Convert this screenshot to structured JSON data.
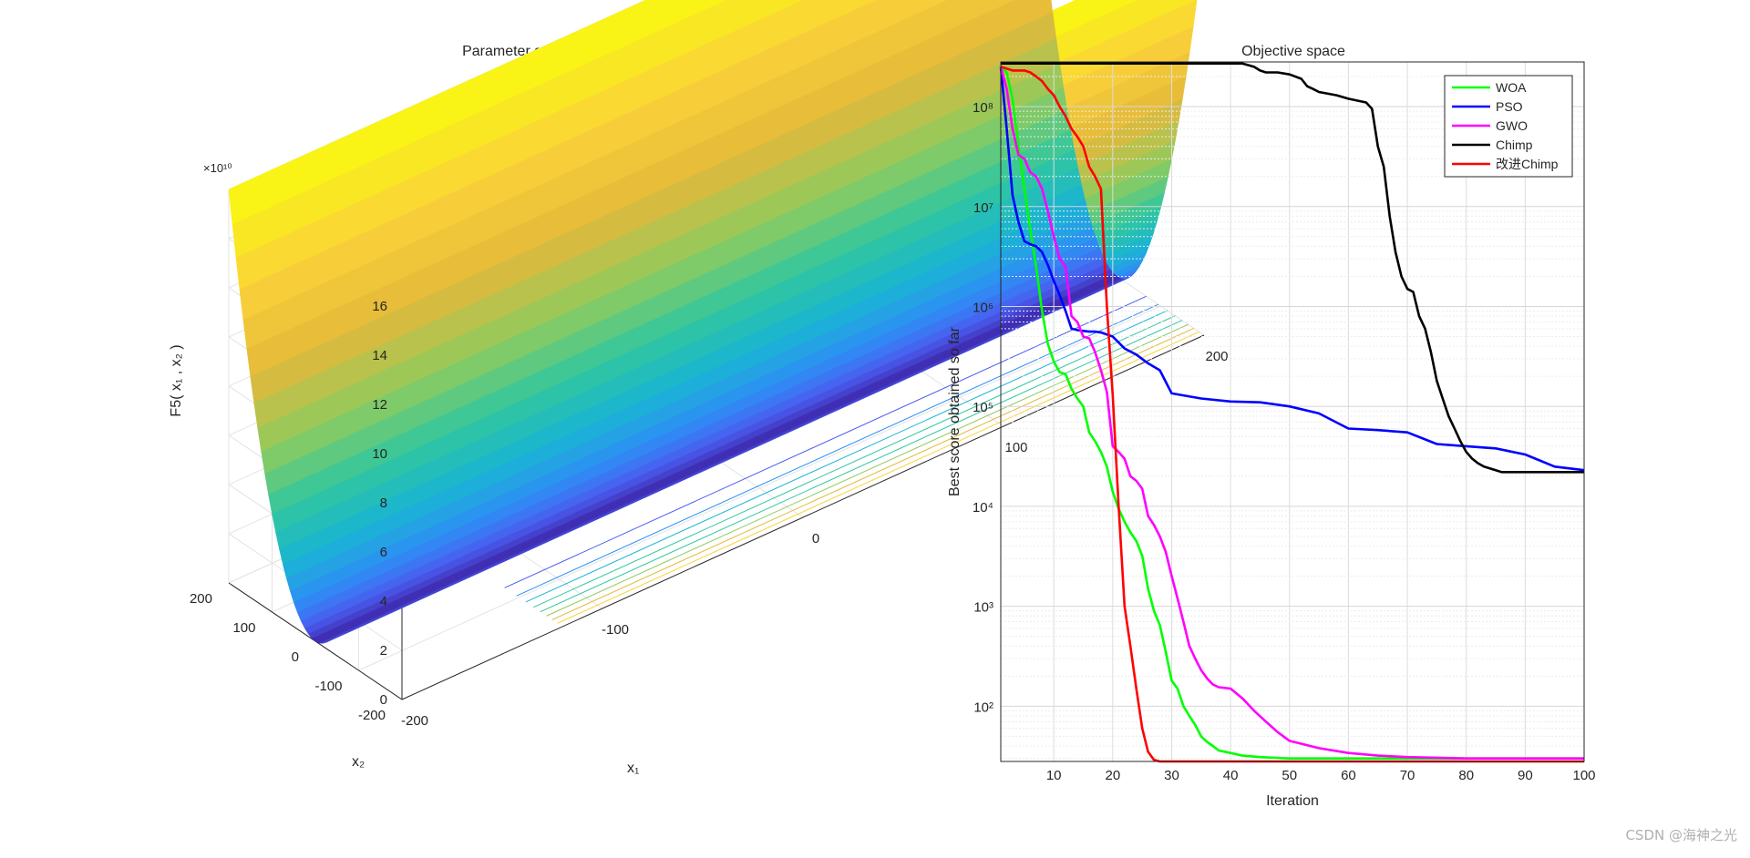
{
  "watermark": "CSDN @海神之光",
  "chart_data": [
    {
      "type": "surface",
      "title": "Parameter space",
      "zlabel": "F5( x₁ , x₂ )",
      "xlabel": "x₁",
      "ylabel": "x₂",
      "z_exponent": "×10¹⁰",
      "xlim": [
        -200,
        200
      ],
      "ylim": [
        -200,
        200
      ],
      "zlim": [
        0,
        16
      ],
      "z_ticks": [
        "0",
        "2",
        "4",
        "6",
        "8",
        "10",
        "12",
        "14",
        "16"
      ],
      "x_ticks": [
        "-200",
        "-100",
        "0",
        "100",
        "200"
      ],
      "y_ticks": [
        "-200",
        "-100",
        "0",
        "100",
        "200"
      ],
      "colormap": [
        "#3e26a8",
        "#4a5cf0",
        "#2d8ff5",
        "#1ab4d3",
        "#2fc6a0",
        "#8fcb5e",
        "#e3b93a",
        "#fbd23a",
        "#f9fb0e"
      ],
      "contour_levels": 9,
      "grid": true
    },
    {
      "type": "line",
      "title": "Objective space",
      "xlabel": "Iteration",
      "ylabel": "Best score obtained so far",
      "yscale": "log",
      "xlim": [
        1,
        100
      ],
      "ylim": [
        28,
        280000000
      ],
      "x_ticks": [
        10,
        20,
        30,
        40,
        50,
        60,
        70,
        80,
        90,
        100
      ],
      "y_ticks": [
        "10²",
        "10³",
        "10⁴",
        "10⁵",
        "10⁶",
        "10⁷",
        "10⁸"
      ],
      "grid": true,
      "legend_position": "top-right",
      "series": [
        {
          "name": "WOA",
          "color": "#00ff00",
          "x": [
            1,
            2,
            3,
            4,
            5,
            6,
            7,
            8,
            9,
            10,
            11,
            12,
            13,
            14,
            15,
            16,
            17,
            18,
            19,
            20,
            21,
            22,
            23,
            24,
            25,
            26,
            27,
            28,
            29,
            30,
            31,
            32,
            33,
            34,
            35,
            36,
            37,
            38,
            40,
            42,
            45,
            50,
            55,
            60,
            70,
            80,
            90,
            100
          ],
          "y": [
            250000000,
            220000000,
            120000000,
            40000000,
            15000000,
            6000000,
            2500000,
            900000,
            420000,
            280000,
            220000,
            210000,
            150000,
            120000,
            100000,
            55000,
            45000,
            35000,
            25000,
            14000,
            9500,
            7000,
            5500,
            4500,
            3200,
            1500,
            900,
            650,
            350,
            180,
            150,
            100,
            80,
            65,
            50,
            44,
            40,
            36,
            34,
            32,
            31,
            30,
            30,
            30,
            30,
            30,
            30,
            30
          ]
        },
        {
          "name": "PSO",
          "color": "#0000ff",
          "x": [
            1,
            2,
            3,
            4,
            5,
            6,
            7,
            8,
            9,
            10,
            11,
            12,
            13,
            14,
            15,
            16,
            17,
            18,
            20,
            22,
            24,
            26,
            28,
            30,
            35,
            40,
            45,
            50,
            55,
            60,
            65,
            70,
            75,
            80,
            85,
            90,
            95,
            100
          ],
          "y": [
            250000000,
            60000000,
            13000000,
            7000000,
            4500000,
            4200000,
            4000000,
            3500000,
            2600000,
            1800000,
            1300000,
            900000,
            600000,
            580000,
            570000,
            560000,
            560000,
            550000,
            500000,
            380000,
            330000,
            270000,
            230000,
            135000,
            120000,
            112000,
            110000,
            100000,
            85000,
            60000,
            58000,
            55000,
            42000,
            40000,
            38000,
            33000,
            25000,
            23000
          ]
        },
        {
          "name": "GWO",
          "color": "#ff00ff",
          "x": [
            1,
            2,
            3,
            4,
            5,
            6,
            7,
            8,
            9,
            10,
            11,
            12,
            13,
            14,
            15,
            16,
            17,
            18,
            19,
            20,
            21,
            22,
            23,
            24,
            25,
            26,
            27,
            28,
            29,
            30,
            31,
            32,
            33,
            34,
            35,
            36,
            37,
            38,
            40,
            42,
            44,
            46,
            48,
            50,
            55,
            60,
            65,
            70,
            80,
            90,
            100
          ],
          "y": [
            250000000,
            150000000,
            60000000,
            33000000,
            30000000,
            22000000,
            20000000,
            15000000,
            9000000,
            5000000,
            3000000,
            2500000,
            800000,
            700000,
            500000,
            480000,
            350000,
            230000,
            140000,
            40000,
            35000,
            30000,
            20000,
            18000,
            15000,
            8000,
            6500,
            5000,
            3500,
            2000,
            1200,
            700,
            400,
            300,
            230,
            190,
            165,
            155,
            150,
            120,
            90,
            70,
            55,
            45,
            38,
            34,
            32,
            31,
            30,
            30,
            30
          ]
        },
        {
          "name": "Chimp",
          "color": "#000000",
          "x": [
            1,
            5,
            10,
            20,
            30,
            35,
            40,
            42,
            43,
            44,
            45,
            46,
            48,
            50,
            52,
            53,
            54,
            55,
            58,
            60,
            63,
            64,
            65,
            66,
            67,
            68,
            69,
            70,
            71,
            72,
            73,
            74,
            75,
            76,
            77,
            78,
            79,
            80,
            81,
            82,
            83,
            84,
            85,
            86,
            87,
            88,
            90,
            95,
            100
          ],
          "y": [
            270000000,
            270000000,
            270000000,
            270000000,
            270000000,
            270000000,
            270000000,
            270000000,
            260000000,
            250000000,
            230000000,
            220000000,
            220000000,
            210000000,
            190000000,
            160000000,
            150000000,
            140000000,
            130000000,
            120000000,
            110000000,
            95000000,
            40000000,
            25000000,
            8000000,
            3500000,
            2000000,
            1500000,
            1400000,
            800000,
            600000,
            350000,
            180000,
            120000,
            80000,
            60000,
            45000,
            35000,
            30000,
            27000,
            25000,
            24000,
            23000,
            22000,
            22000,
            22000,
            22000,
            22000,
            22000
          ]
        },
        {
          "name": "改进Chimp",
          "color": "#ff0000",
          "x": [
            1,
            2,
            3,
            4,
            5,
            6,
            7,
            8,
            9,
            10,
            11,
            12,
            13,
            14,
            15,
            16,
            17,
            18,
            19,
            20,
            21,
            22,
            23,
            24,
            25,
            26,
            27,
            28,
            30,
            35,
            40,
            50,
            60,
            70,
            80,
            90,
            100
          ],
          "y": [
            250000000,
            240000000,
            230000000,
            230000000,
            230000000,
            220000000,
            200000000,
            180000000,
            150000000,
            130000000,
            100000000,
            80000000,
            60000000,
            50000000,
            40000000,
            25000000,
            20000000,
            15000000,
            1000000,
            130000,
            10000,
            1000,
            400,
            150,
            60,
            35,
            29,
            28,
            28,
            28,
            28,
            28,
            28,
            28,
            28,
            28,
            28
          ]
        }
      ]
    }
  ]
}
